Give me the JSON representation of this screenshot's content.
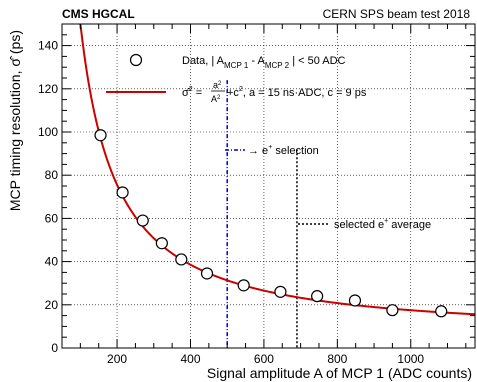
{
  "chart_data": {
    "type": "scatter",
    "header_left": "CMS HGCAL",
    "header_right": "CERN SPS beam test 2018",
    "xlabel": "Signal amplitude A of MCP 1 (ADC counts)",
    "ylabel": "MCP timing resolution, σ̂ (ps)",
    "xlim": [
      50,
      1175
    ],
    "ylim": [
      0,
      150
    ],
    "x_ticks": [
      200,
      400,
      600,
      800,
      1000
    ],
    "y_ticks": [
      0,
      20,
      40,
      60,
      80,
      100,
      120,
      140
    ],
    "grid": true,
    "legend_position": "top-right",
    "series": [
      {
        "name": "Data, |A_MCP1 - A_MCP2| < 50 ADC",
        "marker": "open-circle",
        "color": "#000000",
        "x": [
          155,
          215,
          270,
          322,
          375,
          445,
          545,
          645,
          745,
          848,
          950,
          1083
        ],
        "y": [
          98.5,
          72,
          59,
          48.5,
          41,
          34.5,
          29,
          26,
          24,
          22,
          17.5,
          17
        ]
      },
      {
        "name": "σ̂² = a²/A² + c², a = 15 ns·ADC, c = 9 ps",
        "type": "line",
        "color": "#cc0000",
        "formula": {
          "a_ps_adc": 15000,
          "c_ps": 9
        },
        "x_range": [
          100,
          1175
        ]
      }
    ],
    "annotations": [
      {
        "label": "→ e⁺ selection",
        "x": 500,
        "style": "dash-dot",
        "color": "#0000cc"
      },
      {
        "label": "selected e⁺ average",
        "x": 690,
        "style": "dotted",
        "color": "#000000"
      }
    ],
    "legend": {
      "data_prefix": "Data, | A",
      "data_sub1": "MCP 1",
      "data_mid": " - A",
      "data_sub2": "MCP 2",
      "data_suffix": " | < 50 ADC",
      "fit_lhs": "σ̂",
      "fit_num": "a",
      "fit_den": "A",
      "fit_rest": "+c",
      "fit_params": ", a = 15 ns·ADC, c = 9 ps"
    }
  }
}
